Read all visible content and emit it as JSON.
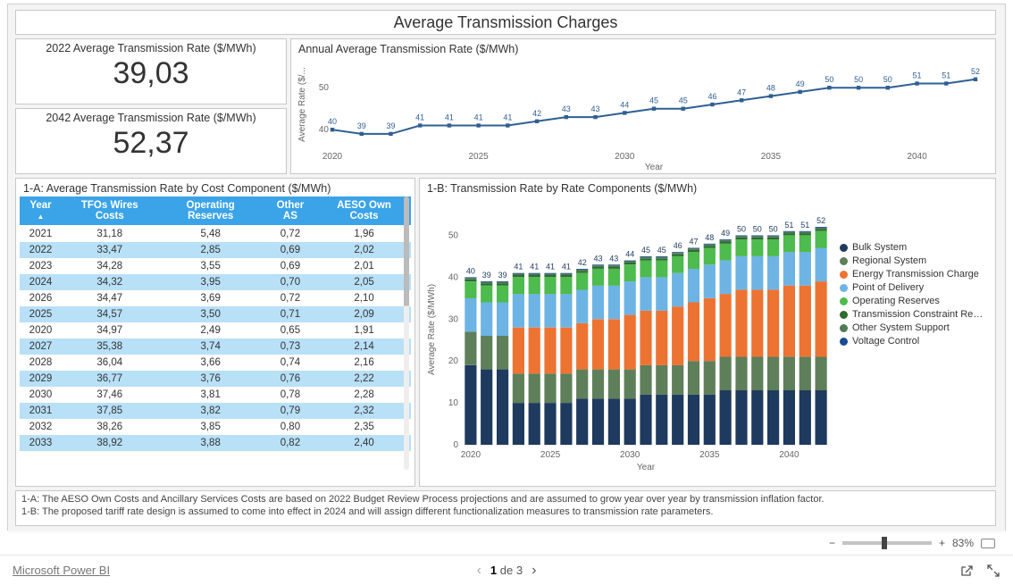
{
  "colors": {
    "panel_border": "#c8c8c8",
    "header_blue": "#3ba3e8",
    "row_alt": "#b8e0f7",
    "line": "#2f5f93",
    "text": "#333333",
    "axis": "#666666"
  },
  "title": "Average Transmission Charges",
  "kpi1": {
    "label": "2022 Average Transmission Rate ($/MWh)",
    "value": "39,03"
  },
  "kpi2": {
    "label": "2042 Average Transmission Rate ($/MWh)",
    "value": "52,37"
  },
  "line_chart": {
    "title": "Annual Average Transmission Rate ($/MWh)",
    "y_title": "Average Rate ($/...",
    "x_title": "Year",
    "years": [
      2020,
      2021,
      2022,
      2023,
      2024,
      2025,
      2026,
      2027,
      2028,
      2029,
      2030,
      2031,
      2032,
      2033,
      2034,
      2035,
      2036,
      2037,
      2038,
      2039,
      2040,
      2041,
      2042
    ],
    "values": [
      40,
      39,
      39,
      41,
      41,
      41,
      41,
      42,
      43,
      43,
      44,
      45,
      45,
      46,
      47,
      48,
      49,
      50,
      50,
      50,
      51,
      51,
      52
    ],
    "x_ticks": [
      2020,
      2025,
      2030,
      2035,
      2040
    ],
    "y_ticks": [
      40,
      50
    ],
    "ylim": [
      36,
      56
    ],
    "line_color": "#2f5f93",
    "marker": "square",
    "label_fontsize": 9
  },
  "table": {
    "title": "1-A: Average Transmission Rate by Cost Component ($/MWh)",
    "columns": [
      "Year",
      "TFOs Wires Costs",
      "Operating Reserves",
      "Other AS",
      "AESO Own Costs"
    ],
    "rows": [
      [
        "2021",
        "31,18",
        "5,48",
        "0,72",
        "1,96"
      ],
      [
        "2022",
        "33,47",
        "2,85",
        "0,69",
        "2,02"
      ],
      [
        "2023",
        "34,28",
        "3,55",
        "0,69",
        "2,01"
      ],
      [
        "2024",
        "34,32",
        "3,95",
        "0,70",
        "2,05"
      ],
      [
        "2026",
        "34,47",
        "3,69",
        "0,72",
        "2,10"
      ],
      [
        "2025",
        "34,57",
        "3,50",
        "0,71",
        "2,09"
      ],
      [
        "2020",
        "34,97",
        "2,49",
        "0,65",
        "1,91"
      ],
      [
        "2027",
        "35,38",
        "3,74",
        "0,73",
        "2,14"
      ],
      [
        "2028",
        "36,04",
        "3,66",
        "0,74",
        "2,16"
      ],
      [
        "2029",
        "36,77",
        "3,76",
        "0,76",
        "2,22"
      ],
      [
        "2030",
        "37,46",
        "3,81",
        "0,78",
        "2,28"
      ],
      [
        "2031",
        "37,85",
        "3,82",
        "0,79",
        "2,32"
      ],
      [
        "2032",
        "38,26",
        "3,85",
        "0,80",
        "2,35"
      ],
      [
        "2033",
        "38,92",
        "3,88",
        "0,82",
        "2,40"
      ]
    ],
    "alt_rows": [
      1,
      3,
      5,
      7,
      9,
      11,
      13
    ]
  },
  "bar_chart": {
    "title": "1-B: Transmission Rate by Rate Components ($/MWh)",
    "y_title": "Average Rate ($/MWh)",
    "x_title": "Year",
    "years": [
      2020,
      2021,
      2022,
      2023,
      2024,
      2025,
      2026,
      2027,
      2028,
      2029,
      2030,
      2031,
      2032,
      2033,
      2034,
      2035,
      2036,
      2037,
      2038,
      2039,
      2040,
      2041,
      2042
    ],
    "totals": [
      40,
      39,
      39,
      41,
      41,
      41,
      41,
      42,
      43,
      43,
      44,
      45,
      45,
      46,
      47,
      48,
      49,
      50,
      50,
      50,
      51,
      51,
      52
    ],
    "x_ticks": [
      2020,
      2025,
      2030,
      2035,
      2040
    ],
    "y_ticks": [
      0,
      10,
      20,
      30,
      40,
      50
    ],
    "ylim": [
      0,
      55
    ],
    "series": [
      {
        "name": "Bulk System",
        "color": "#1f3a5f"
      },
      {
        "name": "Regional System",
        "color": "#5e7f5a"
      },
      {
        "name": "Energy Transmission Charge",
        "color": "#ed7333"
      },
      {
        "name": "Point of Delivery",
        "color": "#6db4e4"
      },
      {
        "name": "Operating Reserves",
        "color": "#4dbb4d"
      },
      {
        "name": "Transmission Constraint Rebalanci...",
        "color": "#2e6b2e"
      },
      {
        "name": "Other System Support",
        "color": "#4d7c55"
      },
      {
        "name": "Voltage Control",
        "color": "#1a4d8f"
      }
    ],
    "stacks": [
      [
        19,
        8,
        0,
        8,
        4,
        0.5,
        0.3,
        0.2
      ],
      [
        18,
        8,
        0,
        8,
        4,
        0.5,
        0.3,
        0.2
      ],
      [
        18,
        8,
        0,
        8,
        4,
        0.5,
        0.3,
        0.2
      ],
      [
        10,
        7,
        11,
        8,
        4,
        0.5,
        0.3,
        0.2
      ],
      [
        10,
        7,
        11,
        8,
        4,
        0.5,
        0.3,
        0.2
      ],
      [
        10,
        7,
        11,
        8,
        4,
        0.5,
        0.3,
        0.2
      ],
      [
        10,
        7,
        11,
        8,
        4,
        0.5,
        0.3,
        0.2
      ],
      [
        11,
        7,
        11,
        8,
        4,
        0.5,
        0.3,
        0.2
      ],
      [
        11,
        7,
        12,
        8,
        4,
        0.5,
        0.3,
        0.2
      ],
      [
        11,
        7,
        12,
        8,
        4,
        0.5,
        0.3,
        0.2
      ],
      [
        11,
        7,
        13,
        8,
        4,
        0.5,
        0.3,
        0.2
      ],
      [
        12,
        7,
        13,
        8,
        4,
        0.5,
        0.3,
        0.2
      ],
      [
        12,
        7,
        13,
        8,
        4,
        0.5,
        0.3,
        0.2
      ],
      [
        12,
        7,
        14,
        8,
        4,
        0.5,
        0.3,
        0.2
      ],
      [
        12,
        8,
        14,
        8,
        4,
        0.5,
        0.3,
        0.2
      ],
      [
        12,
        8,
        15,
        8,
        4,
        0.5,
        0.3,
        0.2
      ],
      [
        13,
        8,
        15,
        8,
        4,
        0.5,
        0.3,
        0.2
      ],
      [
        13,
        8,
        16,
        8,
        4,
        0.5,
        0.3,
        0.2
      ],
      [
        13,
        8,
        16,
        8,
        4,
        0.5,
        0.3,
        0.2
      ],
      [
        13,
        8,
        16,
        8,
        4,
        0.5,
        0.3,
        0.2
      ],
      [
        13,
        8,
        17,
        8,
        4,
        0.5,
        0.3,
        0.2
      ],
      [
        13,
        8,
        17,
        8,
        4,
        0.5,
        0.3,
        0.2
      ],
      [
        13,
        8,
        18,
        8,
        4,
        0.5,
        0.3,
        0.2
      ]
    ],
    "bar_width": 0.74,
    "label_fontsize": 9
  },
  "footnotes": {
    "a": "1-A: The AESO Own Costs and Ancillary Services Costs are based on 2022 Budget Review Process projections and are assumed to grow year over year by transmission inflation factor.",
    "b": "1-B: The proposed tariff rate design is assumed to come into effect in 2024 and will assign different functionalization measures to transmission rate parameters."
  },
  "zoom": {
    "minus": "−",
    "plus": "+",
    "percent": "83%",
    "thumb_pos": 44
  },
  "pager": {
    "text_prefix": "1",
    "text_mid": " de ",
    "text_suffix": "3"
  },
  "brand": "Microsoft Power BI"
}
